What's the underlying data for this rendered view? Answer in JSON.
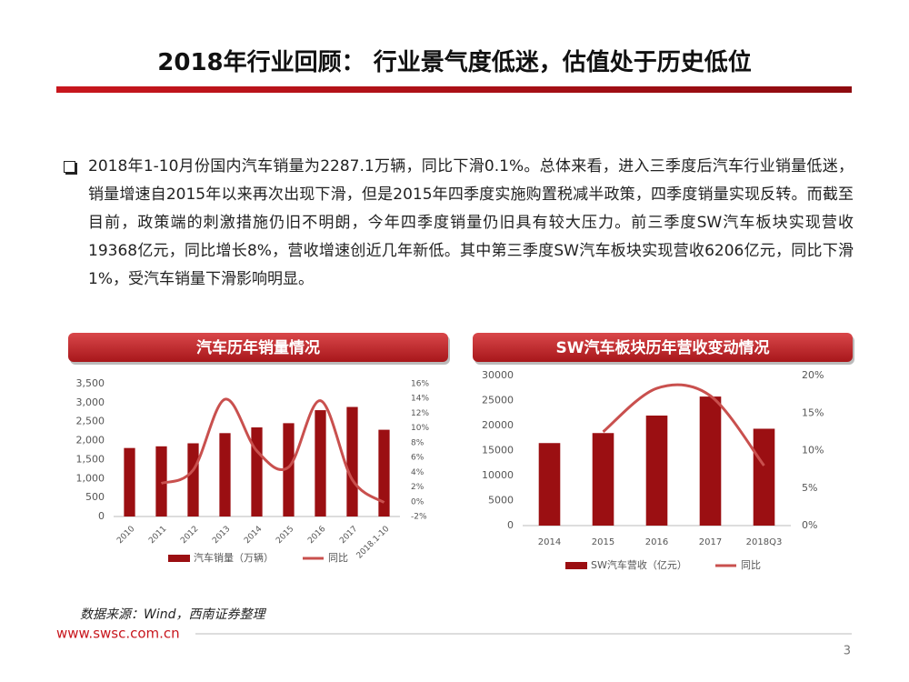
{
  "slide": {
    "title": "2018年行业回顾： 行业景气度低迷，估值处于历史低位",
    "body": "2018年1-10月份国内汽车销量为2287.1万辆，同比下滑0.1%。总体来看，进入三季度后汽车行业销量低迷，销量增速自2015年以来再次出现下滑，但是2015年四季度实施购置税减半政策，四季度销量实现反转。而截至目前，政策端的刺激措施仍旧不明朗，今年四季度销量仍旧具有较大压力。前三季度SW汽车板块实现营收19368亿元，同比增长8%，营收增速创近几年新低。其中第三季度SW汽车板块实现营收6206亿元，同比下滑1%，受汽车销量下滑影响明显。",
    "source": "数据来源：Wind，西南证券整理",
    "url": "www.swsc.com.cn",
    "page": "3"
  },
  "chart_data": [
    {
      "type": "bar-line",
      "title": "汽车历年销量情况",
      "x": [
        "2010",
        "2011",
        "2012",
        "2013",
        "2014",
        "2015",
        "2016",
        "2017",
        "2018.1-10"
      ],
      "series": [
        {
          "name": "汽车销量（万辆）",
          "type": "bar",
          "color": "#9b0f12",
          "values": [
            1806,
            1850,
            1930,
            2198,
            2349,
            2460,
            2803,
            2888,
            2287
          ]
        },
        {
          "name": "同比",
          "type": "line",
          "axis": "y2",
          "color": "#c9504e",
          "values": [
            null,
            2.5,
            4.3,
            13.9,
            6.9,
            4.7,
            13.7,
            3.0,
            -0.1
          ]
        }
      ],
      "ylim": [
        0,
        3500
      ],
      "yticks": [
        0,
        500,
        {
          "value": 1000,
          "label": "1,000"
        },
        {
          "value": 1500,
          "label": "1,500"
        },
        {
          "value": 2000,
          "label": "2,000"
        },
        {
          "value": 2500,
          "label": "2,500"
        },
        {
          "value": 3000,
          "label": "3,000"
        },
        {
          "value": 3500,
          "label": "3,500"
        }
      ],
      "y2lim": [
        -2,
        16
      ],
      "y2ticks": [
        {
          "value": -2,
          "label": "-2%"
        },
        {
          "value": 0,
          "label": "0%"
        },
        {
          "value": 2,
          "label": "2%"
        },
        {
          "value": 4,
          "label": "4%"
        },
        {
          "value": 6,
          "label": "6%"
        },
        {
          "value": 8,
          "label": "8%"
        },
        {
          "value": 10,
          "label": "10%"
        },
        {
          "value": 12,
          "label": "12%"
        },
        {
          "value": 14,
          "label": "14%"
        },
        {
          "value": 16,
          "label": "16%"
        }
      ],
      "legend": "bottom"
    },
    {
      "type": "bar-line",
      "title": "SW汽车板块历年营收变动情况",
      "x": [
        "2014",
        "2015",
        "2016",
        "2017",
        "2018Q3"
      ],
      "series": [
        {
          "name": "SW汽车营收（亿元）",
          "type": "bar",
          "color": "#9b0f12",
          "values": [
            16500,
            18500,
            22000,
            25800,
            19368
          ]
        },
        {
          "name": "同比",
          "type": "line",
          "axis": "y2",
          "color": "#c9504e",
          "values": [
            null,
            12.5,
            18.3,
            17.3,
            8.0
          ]
        }
      ],
      "ylim": [
        0,
        30000
      ],
      "yticks": [
        0,
        5000,
        10000,
        15000,
        20000,
        25000,
        30000
      ],
      "y2lim": [
        0,
        20
      ],
      "y2ticks": [
        {
          "value": 0,
          "label": "0%"
        },
        {
          "value": 5,
          "label": "5%"
        },
        {
          "value": 10,
          "label": "10%"
        },
        {
          "value": 15,
          "label": "15%"
        },
        {
          "value": 20,
          "label": "20%"
        }
      ],
      "legend": "bottom"
    }
  ]
}
